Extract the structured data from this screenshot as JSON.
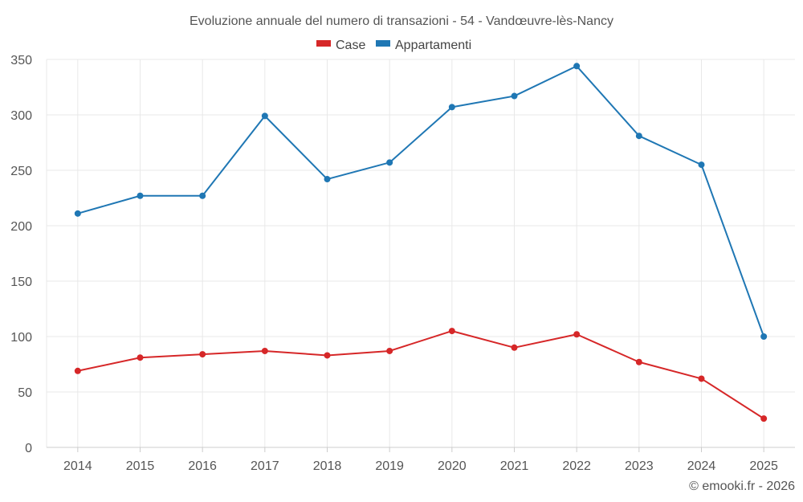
{
  "chart_data": {
    "type": "line",
    "title": "Evoluzione annuale del numero di transazioni - 54 - Vandœuvre-lès-Nancy",
    "categories": [
      "2014",
      "2015",
      "2016",
      "2017",
      "2018",
      "2019",
      "2020",
      "2021",
      "2022",
      "2023",
      "2024",
      "2025"
    ],
    "series": [
      {
        "name": "Case",
        "color": "#d62728",
        "values": [
          69,
          81,
          84,
          87,
          83,
          87,
          105,
          90,
          102,
          77,
          62,
          26
        ]
      },
      {
        "name": "Appartamenti",
        "color": "#1f77b4",
        "values": [
          211,
          227,
          227,
          299,
          242,
          257,
          307,
          317,
          344,
          281,
          255,
          100
        ]
      }
    ],
    "yticks": [
      0,
      50,
      100,
      150,
      200,
      250,
      300,
      350
    ],
    "ylim": [
      0,
      350
    ],
    "grid": true,
    "legend_position": "top-center",
    "xlabel": "",
    "ylabel": ""
  },
  "credit": "© emooki.fr - 2026"
}
